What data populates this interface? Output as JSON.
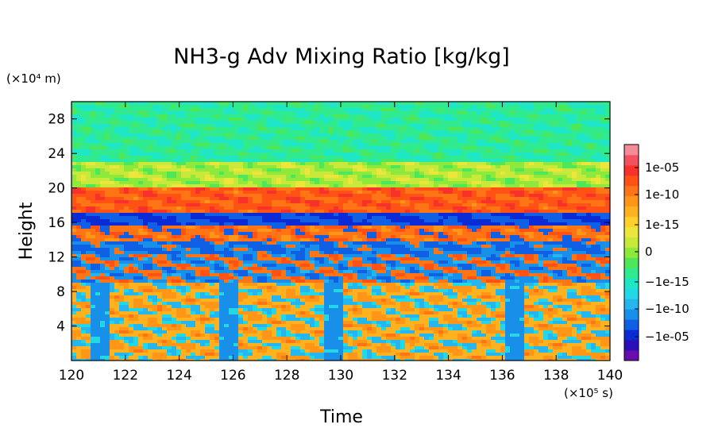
{
  "chart_data": {
    "type": "heatmap",
    "title": "NH3-g Adv Mixing Ratio [kg/kg]",
    "xlabel": "Time",
    "ylabel": "Height",
    "x_unit_label": "(×10⁵ s)",
    "y_unit_label": "(×10⁴ m)",
    "xlim": [
      120,
      140
    ],
    "ylim": [
      0,
      30
    ],
    "x_ticks": [
      "120",
      "122",
      "124",
      "126",
      "128",
      "130",
      "132",
      "134",
      "136",
      "138",
      "140"
    ],
    "y_ticks": [
      "4",
      "8",
      "12",
      "16",
      "20",
      "24",
      "28"
    ],
    "colorbar": {
      "tick_labels": [
        "1e-05",
        "1e-10",
        "1e-15",
        "0",
        "−1e-15",
        "−1e-10",
        "−1e-05"
      ],
      "colors": [
        "#6a0dad",
        "#2b0fb8",
        "#0a2bd6",
        "#1060e6",
        "#1890ea",
        "#25b6ef",
        "#22d7e6",
        "#1fe6c4",
        "#2fea8e",
        "#4fe75a",
        "#8ee93a",
        "#c8e83a",
        "#ece53a",
        "#ffcf2a",
        "#ffb21f",
        "#ff9618",
        "#ff7414",
        "#ff5214",
        "#f7322a",
        "#f2525e",
        "#f58a98"
      ]
    },
    "bands": [
      {
        "height_range": [
          0,
          9
        ],
        "value": "~1e-10 to 1e-12 (orange/yellow) with blue downdraft columns"
      },
      {
        "height_range": [
          9,
          12
        ],
        "value": "mixed, ~±1e-15"
      },
      {
        "height_range": [
          12,
          14
        ],
        "value": "~-1e-08 (blue)"
      },
      {
        "height_range": [
          14,
          16
        ],
        "value": "~1e-08 (red)"
      },
      {
        "height_range": [
          16,
          17
        ],
        "value": "~-1e-06 (dark blue)"
      },
      {
        "height_range": [
          17,
          20
        ],
        "value": "~1e-08 (red/orange)"
      },
      {
        "height_range": [
          20,
          23
        ],
        "value": "~1e-16 (yellow-green)"
      },
      {
        "height_range": [
          23,
          30
        ],
        "value": "~±1e-18 (green/cyan)"
      }
    ],
    "downdraft_times": [
      121,
      125.8,
      129.7,
      136.5
    ],
    "grid": false
  }
}
